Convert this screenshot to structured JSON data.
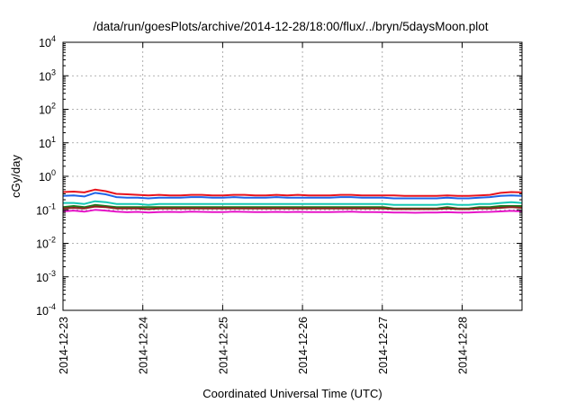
{
  "chart_data": {
    "type": "line",
    "title": "/data/run/goesPlots/archive/2014-12-28/18:00/flux/../bryn/5daysMoon.plot",
    "xlabel": "Coordinated Universal Time (UTC)",
    "ylabel": "cGy/day",
    "y_scale": "log",
    "ylim": [
      0.0001,
      10000
    ],
    "y_ticks": [
      {
        "base": "10",
        "exp": "-4",
        "value": 0.0001
      },
      {
        "base": "10",
        "exp": "-3",
        "value": 0.001
      },
      {
        "base": "10",
        "exp": "-2",
        "value": 0.01
      },
      {
        "base": "10",
        "exp": "-1",
        "value": 0.1
      },
      {
        "base": "10",
        "exp": "0",
        "value": 1
      },
      {
        "base": "10",
        "exp": "1",
        "value": 10
      },
      {
        "base": "10",
        "exp": "2",
        "value": 100
      },
      {
        "base": "10",
        "exp": "3",
        "value": 1000
      },
      {
        "base": "10",
        "exp": "4",
        "value": 10000
      }
    ],
    "x_ticks": [
      "2014-12-23",
      "2014-12-24",
      "2014-12-25",
      "2014-12-26",
      "2014-12-27",
      "2014-12-28"
    ],
    "xlim": [
      "2014-12-23",
      "2014-12-28 18:00"
    ],
    "grid": true,
    "legend": "none",
    "series": [
      {
        "color": "#e8141e",
        "level": 0.27,
        "values": [
          0.34,
          0.35,
          0.33,
          0.4,
          0.36,
          0.3,
          0.29,
          0.28,
          0.27,
          0.28,
          0.27,
          0.27,
          0.28,
          0.28,
          0.27,
          0.27,
          0.28,
          0.28,
          0.27,
          0.27,
          0.28,
          0.27,
          0.28,
          0.27,
          0.27,
          0.27,
          0.28,
          0.28,
          0.27,
          0.27,
          0.27,
          0.27,
          0.26,
          0.26,
          0.26,
          0.26,
          0.27,
          0.26,
          0.26,
          0.27,
          0.28,
          0.32,
          0.34,
          0.33
        ]
      },
      {
        "color": "#1e64e8",
        "level": 0.23,
        "values": [
          0.26,
          0.27,
          0.25,
          0.32,
          0.29,
          0.24,
          0.23,
          0.23,
          0.22,
          0.23,
          0.23,
          0.23,
          0.24,
          0.24,
          0.23,
          0.23,
          0.24,
          0.23,
          0.23,
          0.23,
          0.24,
          0.23,
          0.23,
          0.23,
          0.23,
          0.23,
          0.24,
          0.24,
          0.23,
          0.23,
          0.23,
          0.22,
          0.22,
          0.22,
          0.22,
          0.22,
          0.23,
          0.22,
          0.22,
          0.23,
          0.24,
          0.26,
          0.27,
          0.26
        ]
      },
      {
        "color": "#14c8b4",
        "level": 0.15,
        "values": [
          0.16,
          0.16,
          0.15,
          0.18,
          0.17,
          0.15,
          0.15,
          0.15,
          0.14,
          0.15,
          0.15,
          0.15,
          0.15,
          0.15,
          0.15,
          0.15,
          0.15,
          0.15,
          0.15,
          0.15,
          0.15,
          0.15,
          0.15,
          0.15,
          0.15,
          0.15,
          0.15,
          0.15,
          0.15,
          0.15,
          0.15,
          0.14,
          0.14,
          0.14,
          0.14,
          0.14,
          0.15,
          0.14,
          0.14,
          0.15,
          0.15,
          0.16,
          0.17,
          0.16
        ]
      },
      {
        "color": "#1e7a1e",
        "level": 0.12,
        "values": [
          0.12,
          0.13,
          0.12,
          0.14,
          0.13,
          0.12,
          0.12,
          0.12,
          0.12,
          0.12,
          0.12,
          0.12,
          0.12,
          0.12,
          0.12,
          0.12,
          0.12,
          0.12,
          0.12,
          0.12,
          0.12,
          0.12,
          0.12,
          0.12,
          0.12,
          0.12,
          0.12,
          0.12,
          0.12,
          0.12,
          0.12,
          0.11,
          0.11,
          0.11,
          0.11,
          0.11,
          0.12,
          0.11,
          0.11,
          0.12,
          0.12,
          0.13,
          0.13,
          0.13
        ]
      },
      {
        "color": "#8c1e1e",
        "level": 0.11,
        "values": [
          0.11,
          0.115,
          0.11,
          0.125,
          0.12,
          0.11,
          0.11,
          0.11,
          0.105,
          0.11,
          0.11,
          0.11,
          0.11,
          0.11,
          0.11,
          0.11,
          0.11,
          0.11,
          0.11,
          0.11,
          0.11,
          0.11,
          0.11,
          0.11,
          0.11,
          0.11,
          0.11,
          0.11,
          0.11,
          0.11,
          0.11,
          0.105,
          0.105,
          0.105,
          0.105,
          0.105,
          0.11,
          0.105,
          0.105,
          0.11,
          0.11,
          0.115,
          0.12,
          0.115
        ]
      },
      {
        "color": "#e614c8",
        "level": 0.09,
        "values": [
          0.09,
          0.095,
          0.088,
          0.1,
          0.095,
          0.088,
          0.085,
          0.087,
          0.083,
          0.086,
          0.087,
          0.086,
          0.088,
          0.087,
          0.086,
          0.086,
          0.088,
          0.087,
          0.086,
          0.086,
          0.087,
          0.086,
          0.087,
          0.086,
          0.086,
          0.086,
          0.087,
          0.088,
          0.086,
          0.086,
          0.085,
          0.083,
          0.083,
          0.082,
          0.083,
          0.083,
          0.085,
          0.083,
          0.083,
          0.086,
          0.087,
          0.09,
          0.093,
          0.09
        ]
      }
    ]
  }
}
